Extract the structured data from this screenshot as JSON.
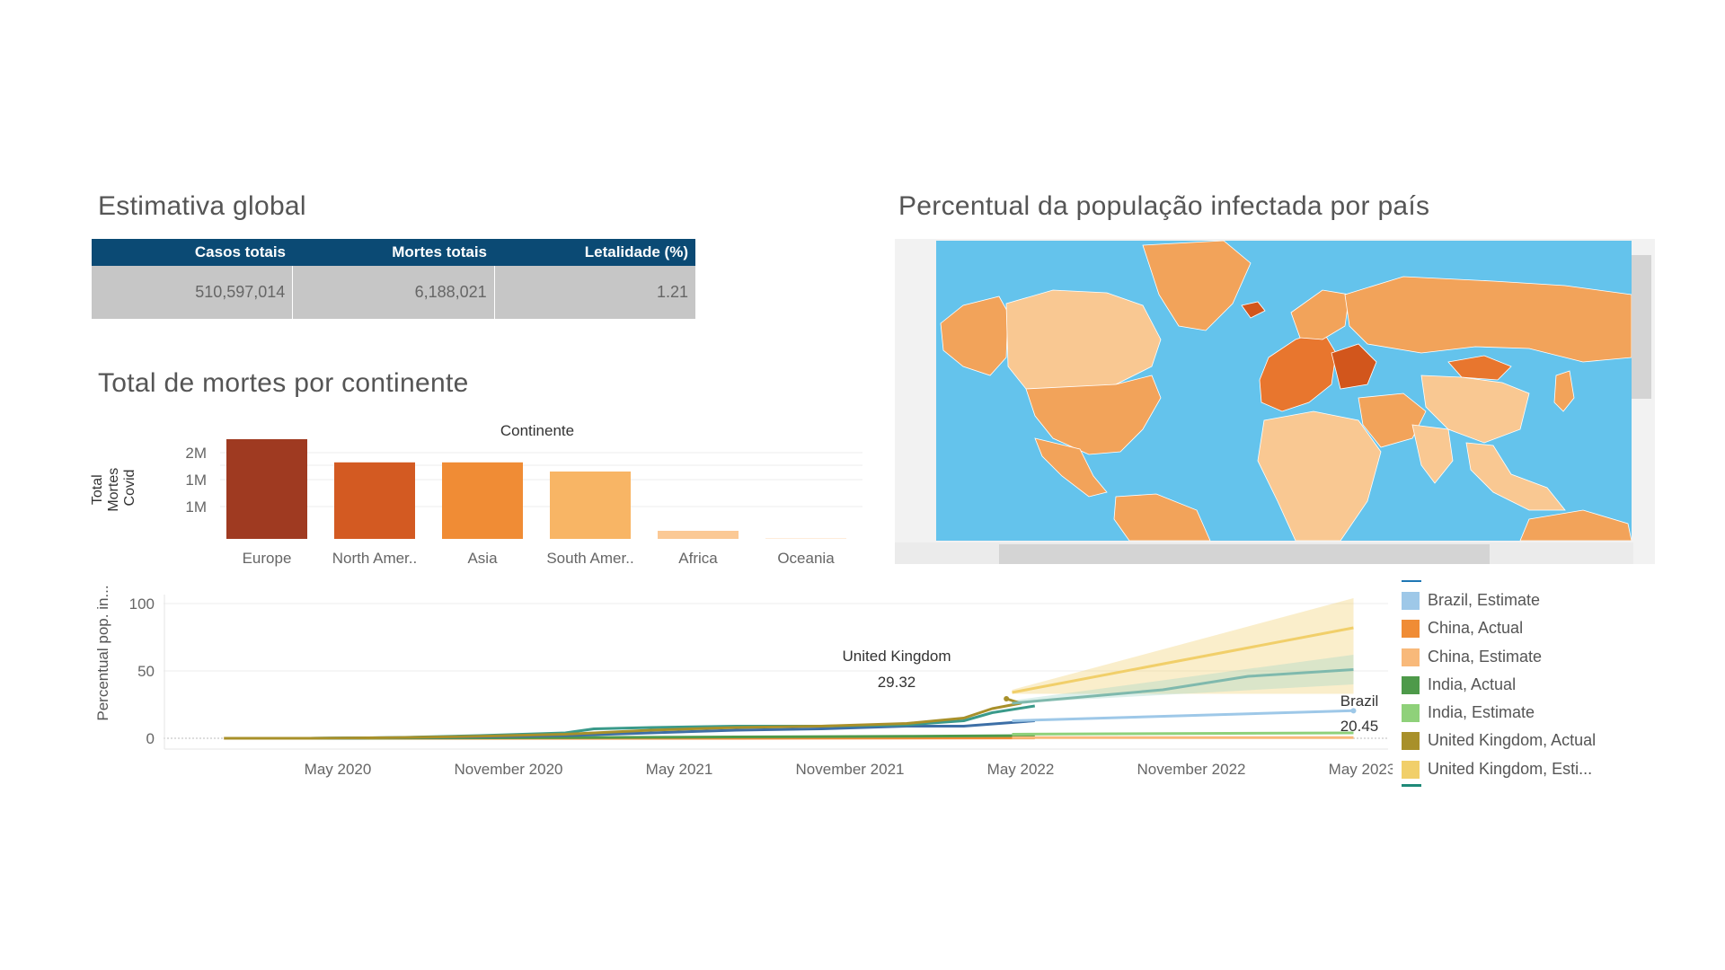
{
  "titles": {
    "global": "Estimativa global",
    "continent": "Total de mortes por continente",
    "map": "Percentual da população infectada por país"
  },
  "kpi": {
    "headers": [
      "Casos totais",
      "Mortes totais",
      "Letalidade (%)"
    ],
    "values": [
      "510,597,014",
      "6,188,021",
      "1.21"
    ],
    "header_color": "#0b4a74",
    "cell_color": "#c6c6c6"
  },
  "map": {
    "ocean_color": "#64c3ec",
    "land_colors": [
      "#f2a35a",
      "#e8762e",
      "#f9c892",
      "#d2561c"
    ]
  },
  "chart_data": [
    {
      "type": "bar",
      "title": "Continente",
      "ylabel": "Total Mortes Covid",
      "categories": [
        "Europe",
        "North Amer..",
        "Asia",
        "South Amer..",
        "Africa",
        "Oceania"
      ],
      "values": [
        1850000,
        1420000,
        1420000,
        1250000,
        150000,
        10000
      ],
      "colors": [
        "#9f3a21",
        "#d35a22",
        "#f08c35",
        "#f8b565",
        "#fbc995",
        "#fde0c0"
      ],
      "yticks": [
        "1M",
        "1M",
        "2M"
      ],
      "ytick_values": [
        600000,
        1100000,
        1600000
      ],
      "ylim": [
        0,
        2000000
      ]
    },
    {
      "type": "line",
      "ylabel": "Percentual pop. in...",
      "xticks": [
        "May 2020",
        "November 2020",
        "May 2021",
        "November 2021",
        "May 2022",
        "November 2022",
        "May 2023"
      ],
      "yticks": [
        "0",
        "50",
        "100"
      ],
      "ylim": [
        0,
        100
      ],
      "annotations": [
        {
          "label": "United Kingdom",
          "value": "29.32"
        },
        {
          "label": "Brazil",
          "value": "20.45"
        }
      ],
      "series": [
        {
          "name": "Brazil, Estimate",
          "color": "#9ec8e8"
        },
        {
          "name": "China, Actual",
          "color": "#f08c35"
        },
        {
          "name": "China, Estimate",
          "color": "#f8b97a"
        },
        {
          "name": "India, Actual",
          "color": "#4e9a4a"
        },
        {
          "name": "India, Estimate",
          "color": "#8fd17a"
        },
        {
          "name": "United Kingdom, Actual",
          "color": "#a8902a"
        },
        {
          "name": "United Kingdom, Esti...",
          "color": "#f1cf6a"
        }
      ]
    }
  ]
}
